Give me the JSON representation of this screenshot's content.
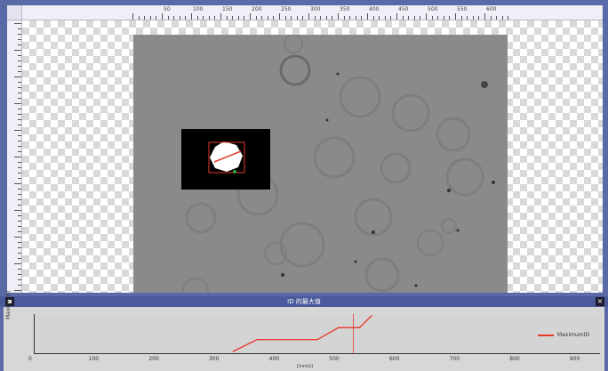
{
  "ruler": {
    "top_ticks": [
      "50",
      "100",
      "150",
      "200",
      "250",
      "300",
      "350",
      "400",
      "450",
      "500",
      "550",
      "600"
    ]
  },
  "panel": {
    "title": "ID 的最大值",
    "left_button": "▪",
    "close_button": "×"
  },
  "graph": {
    "ylabel": "Maximum]",
    "legend_label": "MaximumID",
    "x_ticks": [
      "0",
      "100",
      "200",
      "300",
      "400",
      "500",
      "600",
      "700",
      "800",
      "900"
    ],
    "x_unit": "[mm/s]"
  },
  "colors": {
    "frame": "#5a6aa6",
    "line": "#e83a2a",
    "graph_bg": "#d4d4d4"
  },
  "chart_data": {
    "type": "line",
    "x": [
      330,
      370,
      470,
      505,
      540,
      560
    ],
    "series": [
      {
        "name": "MaximumID",
        "values": [
          0,
          1,
          1,
          2,
          2,
          3
        ]
      }
    ],
    "xlim": [
      0,
      940
    ],
    "ylim": [
      0,
      3
    ],
    "marker_x": 530
  }
}
